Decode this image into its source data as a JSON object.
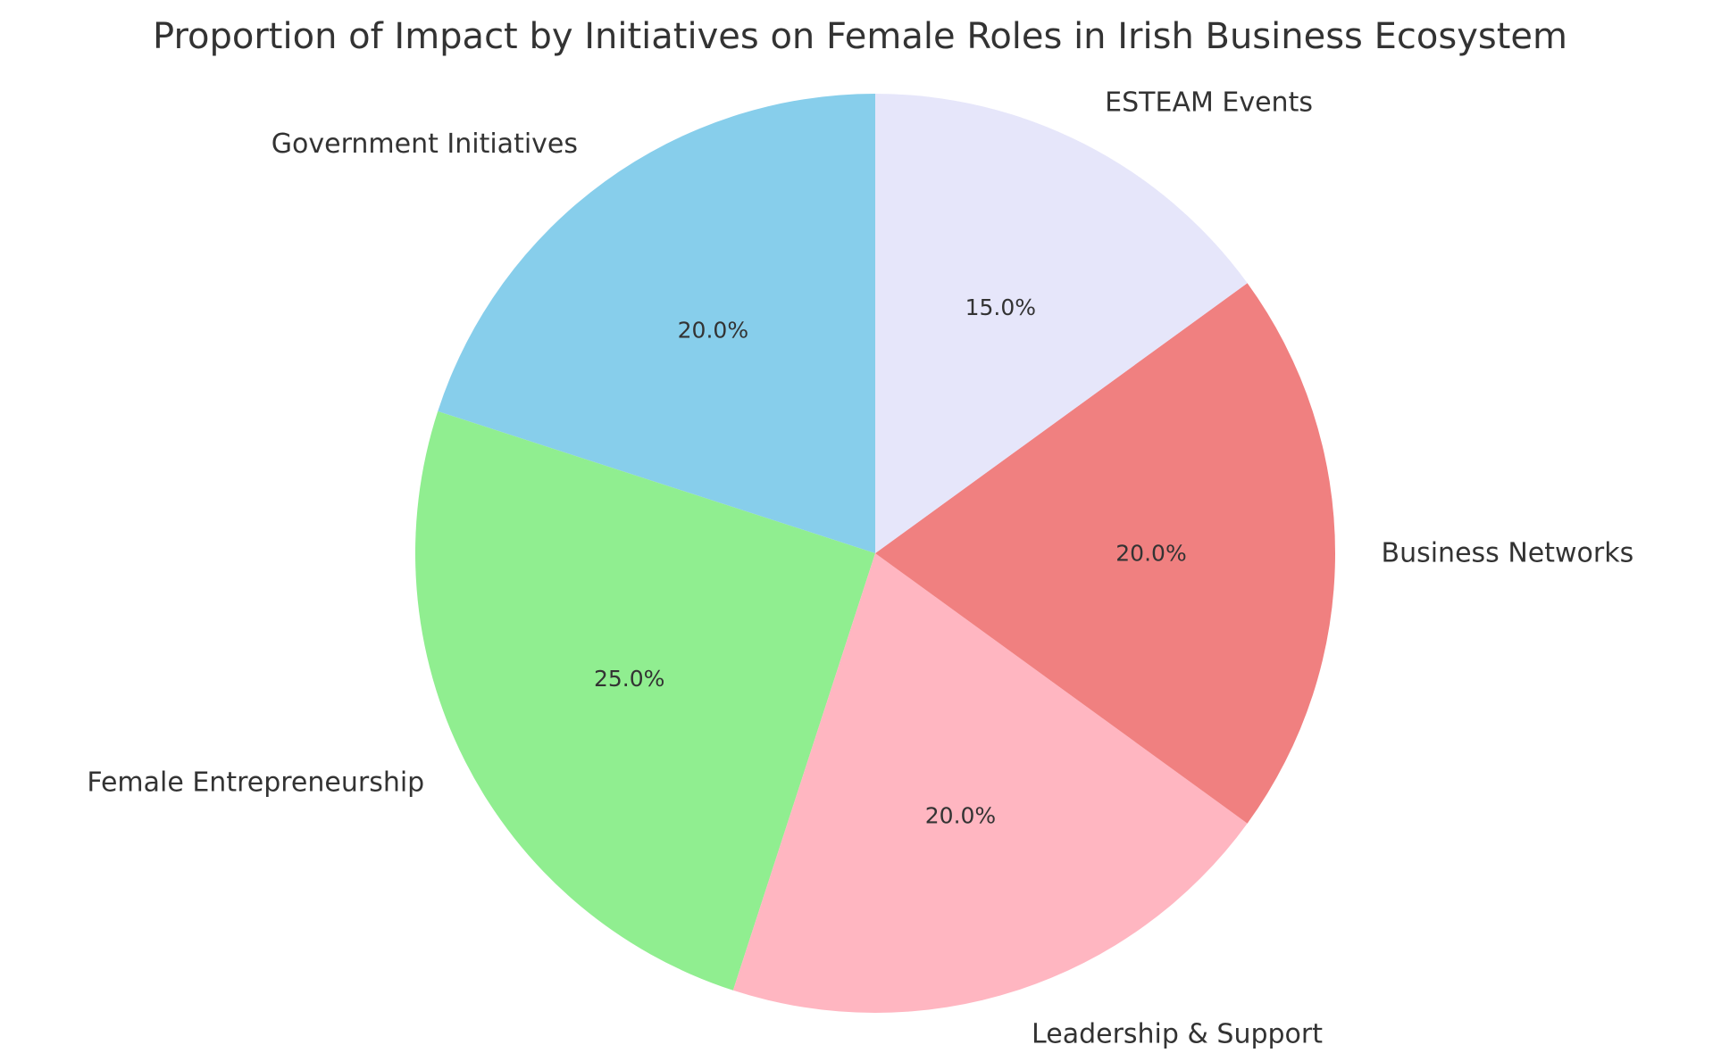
{
  "chart_data": {
    "type": "pie",
    "title": "Proportion of Impact by Initiatives on Female Roles in Irish Business Ecosystem",
    "categories": [
      "Government Initiatives",
      "Female Entrepreneurship",
      "Leadership & Support",
      "Business Networks",
      "ESTEAM Events"
    ],
    "values": [
      20,
      25,
      20,
      20,
      15
    ],
    "value_labels": [
      "20.0%",
      "25.0%",
      "20.0%",
      "20.0%",
      "15.0%"
    ],
    "colors": [
      "#87CEEB",
      "#90EE90",
      "#FFB6C1",
      "#F08080",
      "#E6E6FA"
    ],
    "start_angle_deg": 90,
    "direction": "counterclockwise",
    "legend": "none"
  }
}
